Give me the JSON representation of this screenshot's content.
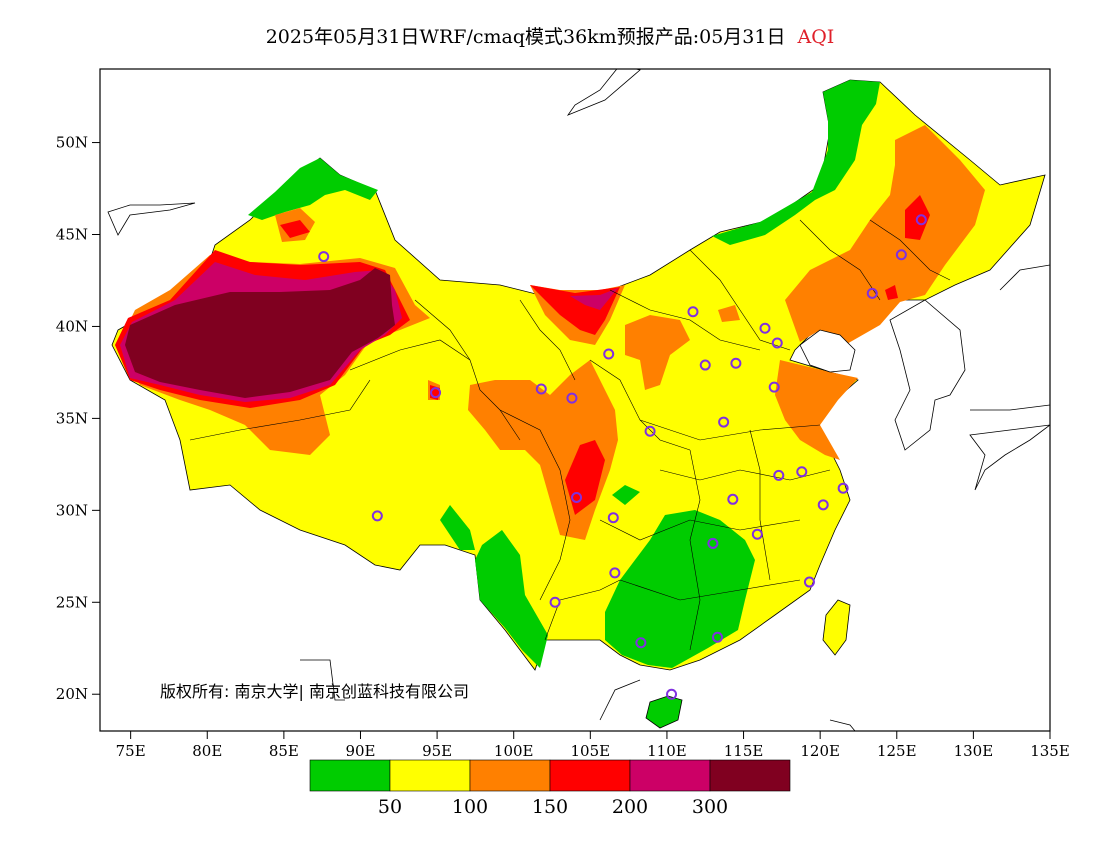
{
  "title": {
    "main": "2025年05月31日WRF/cmaq模式36km预报产品:05月31日",
    "product": "AQI"
  },
  "map": {
    "lon_range": [
      73,
      135
    ],
    "lat_range": [
      18,
      54
    ],
    "x_ticks": [
      "75E",
      "80E",
      "85E",
      "90E",
      "95E",
      "100E",
      "105E",
      "110E",
      "115E",
      "120E",
      "125E",
      "130E",
      "135E"
    ],
    "x_tick_values": [
      75,
      80,
      85,
      90,
      95,
      100,
      105,
      110,
      115,
      120,
      125,
      130,
      135
    ],
    "y_ticks": [
      "20N",
      "25N",
      "30N",
      "35N",
      "40N",
      "45N",
      "50N"
    ],
    "y_tick_values": [
      20,
      25,
      30,
      35,
      40,
      45,
      50
    ],
    "copyright": "版权所有: 南京大学| 南京创蓝科技有限公司",
    "aqi_levels": [
      {
        "range": "0-50",
        "color": "#00cc00"
      },
      {
        "range": "50-100",
        "color": "#ffff00"
      },
      {
        "range": "100-150",
        "color": "#ff8000"
      },
      {
        "range": "150-200",
        "color": "#ff0000"
      },
      {
        "range": "200-300",
        "color": "#cc0066"
      },
      {
        "range": ">300",
        "color": "#800020"
      }
    ],
    "colorbar_labels": [
      "50",
      "100",
      "150",
      "200",
      "300"
    ],
    "station_color": "#8030e0",
    "stations": [
      {
        "lon": 87.6,
        "lat": 43.8
      },
      {
        "lon": 91.1,
        "lat": 29.7
      },
      {
        "lon": 94.9,
        "lat": 36.4
      },
      {
        "lon": 101.8,
        "lat": 36.6
      },
      {
        "lon": 103.8,
        "lat": 36.1
      },
      {
        "lon": 104.1,
        "lat": 30.7
      },
      {
        "lon": 102.7,
        "lat": 25.0
      },
      {
        "lon": 106.6,
        "lat": 26.6
      },
      {
        "lon": 106.5,
        "lat": 29.6
      },
      {
        "lon": 106.2,
        "lat": 38.5
      },
      {
        "lon": 108.9,
        "lat": 34.3
      },
      {
        "lon": 111.7,
        "lat": 40.8
      },
      {
        "lon": 112.5,
        "lat": 37.9
      },
      {
        "lon": 114.5,
        "lat": 38.0
      },
      {
        "lon": 116.4,
        "lat": 39.9
      },
      {
        "lon": 117.2,
        "lat": 39.1
      },
      {
        "lon": 117.0,
        "lat": 36.7
      },
      {
        "lon": 113.7,
        "lat": 34.8
      },
      {
        "lon": 114.3,
        "lat": 30.6
      },
      {
        "lon": 113.0,
        "lat": 28.2
      },
      {
        "lon": 115.9,
        "lat": 28.7
      },
      {
        "lon": 117.3,
        "lat": 31.9
      },
      {
        "lon": 118.8,
        "lat": 32.1
      },
      {
        "lon": 120.2,
        "lat": 30.3
      },
      {
        "lon": 121.5,
        "lat": 31.2
      },
      {
        "lon": 119.3,
        "lat": 26.1
      },
      {
        "lon": 113.3,
        "lat": 23.1
      },
      {
        "lon": 108.3,
        "lat": 22.8
      },
      {
        "lon": 110.3,
        "lat": 20.0
      },
      {
        "lon": 123.4,
        "lat": 41.8
      },
      {
        "lon": 125.3,
        "lat": 43.9
      },
      {
        "lon": 126.6,
        "lat": 45.8
      }
    ]
  }
}
